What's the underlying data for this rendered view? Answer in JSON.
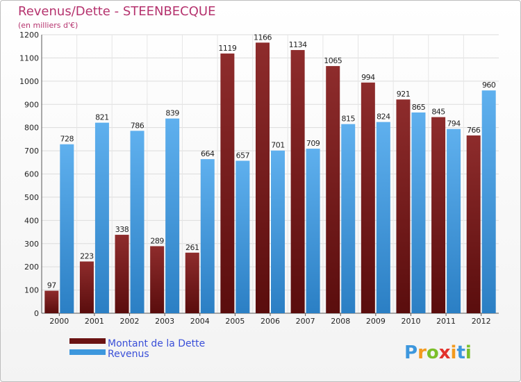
{
  "chart_data": {
    "type": "bar",
    "title": "Revenus/Dette - STEENBECQUE",
    "subtitle": "(en milliers d'€)",
    "categories": [
      "2000",
      "2001",
      "2002",
      "2003",
      "2004",
      "2005",
      "2006",
      "2007",
      "2008",
      "2009",
      "2010",
      "2011",
      "2012"
    ],
    "series": [
      {
        "name": "Montant de la Dette",
        "color": "#7a1a1a",
        "values": [
          97,
          223,
          338,
          289,
          261,
          1119,
          1166,
          1134,
          1065,
          994,
          921,
          845,
          766
        ]
      },
      {
        "name": "Revenus",
        "color": "#3d97dd",
        "values": [
          728,
          821,
          786,
          839,
          664,
          657,
          701,
          709,
          815,
          824,
          865,
          794,
          960
        ]
      }
    ],
    "ylim": [
      0,
      1200
    ],
    "yticks": [
      0,
      100,
      200,
      300,
      400,
      500,
      600,
      700,
      800,
      900,
      1000,
      1100,
      1200
    ],
    "grid": true,
    "legend_position": "bottom-left",
    "xlabel": "",
    "ylabel": ""
  },
  "logo": {
    "text": "Proxiti"
  }
}
